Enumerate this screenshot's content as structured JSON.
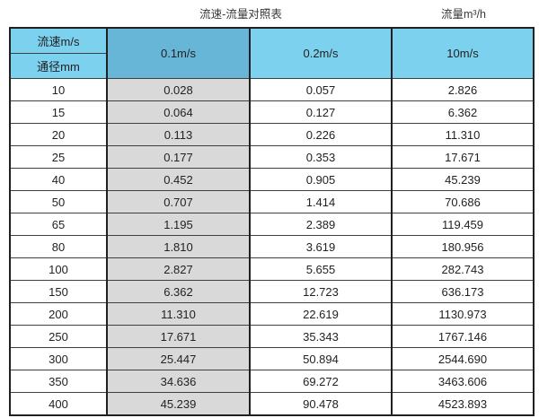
{
  "titles": {
    "main": "流速-流量对照表",
    "unit": "流量m³/h"
  },
  "table": {
    "corner": {
      "top": "流速m/s",
      "bottom": "通径mm"
    },
    "speed_columns": [
      "0.1m/s",
      "0.2m/s",
      "10m/s"
    ],
    "rows": [
      [
        "10",
        "0.028",
        "0.057",
        "2.826"
      ],
      [
        "15",
        "0.064",
        "0.127",
        "6.362"
      ],
      [
        "20",
        "0.113",
        "0.226",
        "11.310"
      ],
      [
        "25",
        "0.177",
        "0.353",
        "17.671"
      ],
      [
        "40",
        "0.452",
        "0.905",
        "45.239"
      ],
      [
        "50",
        "0.707",
        "1.414",
        "70.686"
      ],
      [
        "65",
        "1.195",
        "2.389",
        "119.459"
      ],
      [
        "80",
        "1.810",
        "3.619",
        "180.956"
      ],
      [
        "100",
        "2.827",
        "5.655",
        "282.743"
      ],
      [
        "150",
        "6.362",
        "12.723",
        "636.173"
      ],
      [
        "200",
        "11.310",
        "22.619",
        "1130.973"
      ],
      [
        "250",
        "17.671",
        "35.343",
        "1767.146"
      ],
      [
        "300",
        "25.447",
        "50.894",
        "2544.690"
      ],
      [
        "350",
        "34.636",
        "69.272",
        "3463.606"
      ],
      [
        "400",
        "45.239",
        "90.478",
        "4523.893"
      ]
    ]
  },
  "colors": {
    "header_blue": "#7cd1ef",
    "highlight_blue": "#68b6d7",
    "column_gray": "#d9d9d9",
    "border_dark": "#202020",
    "text": "#222222"
  },
  "chart_data": {
    "type": "table",
    "title": "流速-流量对照表",
    "unit_label": "流量m³/h",
    "row_header": "通径mm",
    "column_header": "流速m/s",
    "categories": [
      10,
      15,
      20,
      25,
      40,
      50,
      65,
      80,
      100,
      150,
      200,
      250,
      300,
      350,
      400
    ],
    "series": [
      {
        "name": "0.1m/s",
        "values": [
          0.028,
          0.064,
          0.113,
          0.177,
          0.452,
          0.707,
          1.195,
          1.81,
          2.827,
          6.362,
          11.31,
          17.671,
          25.447,
          34.636,
          45.239
        ]
      },
      {
        "name": "0.2m/s",
        "values": [
          0.057,
          0.127,
          0.226,
          0.353,
          0.905,
          1.414,
          2.389,
          3.619,
          5.655,
          12.723,
          22.619,
          35.343,
          50.894,
          69.272,
          90.478
        ]
      },
      {
        "name": "10m/s",
        "values": [
          2.826,
          6.362,
          11.31,
          17.671,
          45.239,
          70.686,
          119.459,
          180.956,
          282.743,
          636.173,
          1130.973,
          1767.146,
          2544.69,
          3463.606,
          4523.893
        ]
      }
    ]
  }
}
